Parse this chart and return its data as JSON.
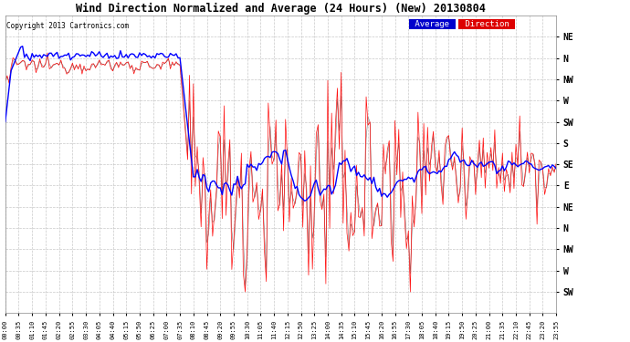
{
  "title": "Wind Direction Normalized and Average (24 Hours) (New) 20130804",
  "copyright": "Copyright 2013 Cartronics.com",
  "background_color": "#ffffff",
  "plot_bg_color": "#ffffff",
  "grid_color": "#bbbbbb",
  "ytick_labels": [
    "NE",
    "N",
    "NW",
    "W",
    "SW",
    "S",
    "SE",
    "E",
    "NE",
    "N",
    "NW",
    "W",
    "SW"
  ],
  "ytick_values": [
    360,
    337.5,
    315,
    292.5,
    270,
    247.5,
    225,
    202.5,
    180,
    157.5,
    135,
    112.5,
    90
  ],
  "ylim": [
    67.5,
    382.5
  ],
  "xlim_max": 287,
  "avg_color": "#0000ff",
  "dir_color": "#ff0000",
  "black_color": "#111111",
  "legend_avg_bg": "#0000cc",
  "legend_dir_bg": "#dd0000",
  "legend_text_color": "#ffffff",
  "tick_times": [
    "00:00",
    "00:35",
    "01:10",
    "01:45",
    "02:20",
    "02:55",
    "03:30",
    "04:05",
    "04:40",
    "05:15",
    "05:50",
    "06:25",
    "07:00",
    "07:35",
    "08:10",
    "08:45",
    "09:20",
    "09:55",
    "10:30",
    "11:05",
    "11:40",
    "12:15",
    "12:50",
    "13:25",
    "14:00",
    "14:35",
    "15:10",
    "15:45",
    "16:20",
    "16:55",
    "17:30",
    "18:05",
    "18:40",
    "19:15",
    "19:50",
    "20:25",
    "21:00",
    "21:35",
    "22:10",
    "22:45",
    "23:20",
    "23:55"
  ]
}
